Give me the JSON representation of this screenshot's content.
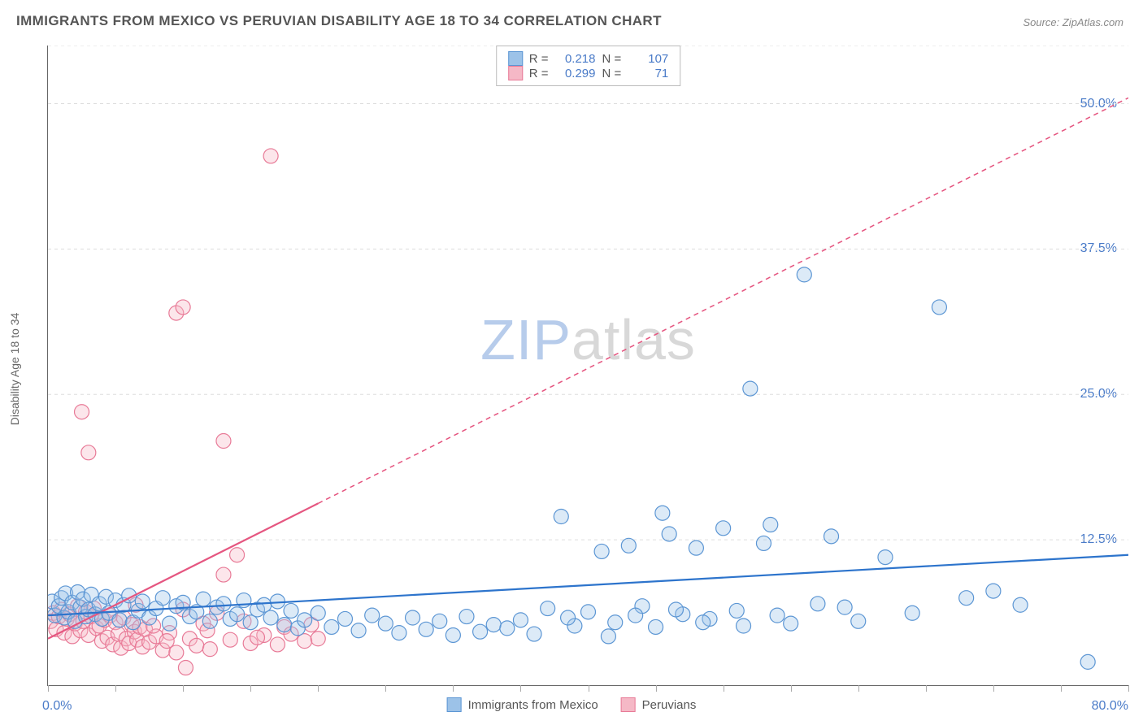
{
  "title": "IMMIGRANTS FROM MEXICO VS PERUVIAN DISABILITY AGE 18 TO 34 CORRELATION CHART",
  "source_label": "Source: ZipAtlas.com",
  "watermark_zip": "ZIP",
  "watermark_atlas": "atlas",
  "y_axis_title": "Disability Age 18 to 34",
  "chart": {
    "type": "scatter",
    "xlim": [
      0,
      80
    ],
    "ylim": [
      0,
      55
    ],
    "x_min_label": "0.0%",
    "x_max_label": "80.0%",
    "x_ticks": [
      0,
      5,
      10,
      15,
      20,
      25,
      30,
      35,
      40,
      45,
      50,
      55,
      60,
      65,
      70,
      75,
      80
    ],
    "y_gridlines": [
      12.5,
      25.0,
      37.5,
      50.0,
      55.0
    ],
    "y_tick_labels": [
      "12.5%",
      "25.0%",
      "37.5%",
      "50.0%"
    ],
    "background_color": "#ffffff",
    "grid_color": "#dddddd",
    "axis_color": "#666666",
    "marker_radius": 9,
    "marker_fill_opacity": 0.35,
    "marker_stroke_width": 1.2,
    "trend_line_width": 2.2,
    "trend_dash": "6,5"
  },
  "series": {
    "blue": {
      "label": "Immigrants from Mexico",
      "R": "0.218",
      "N": "107",
      "fill": "#9cc2e8",
      "stroke": "#5c96d4",
      "line_color": "#2d74cc",
      "trend": {
        "x1": 0,
        "y1": 6.0,
        "x2": 80,
        "y2": 11.2
      },
      "solid_xmax": 80,
      "points": [
        [
          0.3,
          7.2
        ],
        [
          0.5,
          6.0
        ],
        [
          0.8,
          6.8
        ],
        [
          1.0,
          7.5
        ],
        [
          1.2,
          5.8
        ],
        [
          1.3,
          7.9
        ],
        [
          1.5,
          6.3
        ],
        [
          1.8,
          7.1
        ],
        [
          2.0,
          5.5
        ],
        [
          2.2,
          8.0
        ],
        [
          2.4,
          6.7
        ],
        [
          2.6,
          7.4
        ],
        [
          2.8,
          5.9
        ],
        [
          3.0,
          6.5
        ],
        [
          3.2,
          7.8
        ],
        [
          3.5,
          6.1
        ],
        [
          3.8,
          7.0
        ],
        [
          4.0,
          5.7
        ],
        [
          4.3,
          7.6
        ],
        [
          4.5,
          6.2
        ],
        [
          5.0,
          7.3
        ],
        [
          5.3,
          5.6
        ],
        [
          5.6,
          6.9
        ],
        [
          6.0,
          7.7
        ],
        [
          6.3,
          5.4
        ],
        [
          6.7,
          6.4
        ],
        [
          7.0,
          7.2
        ],
        [
          7.5,
          5.8
        ],
        [
          8.0,
          6.6
        ],
        [
          8.5,
          7.5
        ],
        [
          9.0,
          5.3
        ],
        [
          9.5,
          6.8
        ],
        [
          10.0,
          7.1
        ],
        [
          10.5,
          5.9
        ],
        [
          11.0,
          6.3
        ],
        [
          11.5,
          7.4
        ],
        [
          12.0,
          5.5
        ],
        [
          12.5,
          6.7
        ],
        [
          13.0,
          7.0
        ],
        [
          13.5,
          5.7
        ],
        [
          14.0,
          6.1
        ],
        [
          14.5,
          7.3
        ],
        [
          15.0,
          5.4
        ],
        [
          15.5,
          6.5
        ],
        [
          16.0,
          6.9
        ],
        [
          16.5,
          5.8
        ],
        [
          17.0,
          7.2
        ],
        [
          17.5,
          5.2
        ],
        [
          18.0,
          6.4
        ],
        [
          18.5,
          4.9
        ],
        [
          19.0,
          5.6
        ],
        [
          20.0,
          6.2
        ],
        [
          21.0,
          5.0
        ],
        [
          22.0,
          5.7
        ],
        [
          23.0,
          4.7
        ],
        [
          24.0,
          6.0
        ],
        [
          25.0,
          5.3
        ],
        [
          26.0,
          4.5
        ],
        [
          27.0,
          5.8
        ],
        [
          28.0,
          4.8
        ],
        [
          29.0,
          5.5
        ],
        [
          30.0,
          4.3
        ],
        [
          31.0,
          5.9
        ],
        [
          32.0,
          4.6
        ],
        [
          33.0,
          5.2
        ],
        [
          34.0,
          4.9
        ],
        [
          35.0,
          5.6
        ],
        [
          36.0,
          4.4
        ],
        [
          37.0,
          6.6
        ],
        [
          38.0,
          14.5
        ],
        [
          39.0,
          5.1
        ],
        [
          40.0,
          6.3
        ],
        [
          41.0,
          11.5
        ],
        [
          42.0,
          5.4
        ],
        [
          43.0,
          12.0
        ],
        [
          44.0,
          6.8
        ],
        [
          45.0,
          5.0
        ],
        [
          46.0,
          13.0
        ],
        [
          47.0,
          6.1
        ],
        [
          48.0,
          11.8
        ],
        [
          49.0,
          5.7
        ],
        [
          50.0,
          13.5
        ],
        [
          51.0,
          6.4
        ],
        [
          52.0,
          25.5
        ],
        [
          53.0,
          12.2
        ],
        [
          54.0,
          6.0
        ],
        [
          55.0,
          5.3
        ],
        [
          56.0,
          35.3
        ],
        [
          57.0,
          7.0
        ],
        [
          58.0,
          12.8
        ],
        [
          59.0,
          6.7
        ],
        [
          60.0,
          5.5
        ],
        [
          62.0,
          11.0
        ],
        [
          64.0,
          6.2
        ],
        [
          66.0,
          32.5
        ],
        [
          68.0,
          7.5
        ],
        [
          70.0,
          8.1
        ],
        [
          72.0,
          6.9
        ],
        [
          77.0,
          2.0
        ],
        [
          45.5,
          14.8
        ],
        [
          38.5,
          5.8
        ],
        [
          41.5,
          4.2
        ],
        [
          46.5,
          6.5
        ],
        [
          51.5,
          5.1
        ],
        [
          53.5,
          13.8
        ],
        [
          43.5,
          6.0
        ],
        [
          48.5,
          5.4
        ]
      ]
    },
    "pink": {
      "label": "Peruvians",
      "R": "0.299",
      "N": "71",
      "fill": "#f5b8c6",
      "stroke": "#e87a97",
      "line_color": "#e55680",
      "trend": {
        "x1": 0,
        "y1": 4.0,
        "x2": 80,
        "y2": 50.5
      },
      "solid_xmax": 20,
      "points": [
        [
          0.2,
          5.5
        ],
        [
          0.4,
          6.2
        ],
        [
          0.6,
          4.8
        ],
        [
          0.8,
          5.9
        ],
        [
          1.0,
          6.5
        ],
        [
          1.2,
          4.5
        ],
        [
          1.4,
          5.7
        ],
        [
          1.6,
          6.1
        ],
        [
          1.8,
          4.2
        ],
        [
          2.0,
          5.3
        ],
        [
          2.2,
          6.8
        ],
        [
          2.4,
          4.7
        ],
        [
          2.6,
          5.5
        ],
        [
          2.8,
          6.3
        ],
        [
          3.0,
          4.3
        ],
        [
          3.2,
          5.9
        ],
        [
          3.4,
          6.6
        ],
        [
          3.6,
          4.9
        ],
        [
          3.8,
          5.1
        ],
        [
          4.0,
          3.8
        ],
        [
          4.2,
          5.6
        ],
        [
          4.4,
          4.1
        ],
        [
          4.6,
          6.0
        ],
        [
          4.8,
          3.5
        ],
        [
          5.0,
          5.4
        ],
        [
          5.2,
          4.4
        ],
        [
          5.4,
          3.2
        ],
        [
          5.6,
          5.8
        ],
        [
          5.8,
          4.0
        ],
        [
          6.0,
          3.6
        ],
        [
          6.2,
          5.2
        ],
        [
          6.4,
          4.6
        ],
        [
          6.6,
          3.9
        ],
        [
          6.8,
          5.0
        ],
        [
          7.0,
          3.3
        ],
        [
          7.2,
          4.8
        ],
        [
          7.5,
          3.7
        ],
        [
          8.0,
          4.2
        ],
        [
          8.5,
          3.0
        ],
        [
          9.0,
          4.5
        ],
        [
          9.5,
          2.8
        ],
        [
          10.0,
          6.5
        ],
        [
          10.5,
          4.0
        ],
        [
          11.0,
          3.4
        ],
        [
          11.5,
          5.3
        ],
        [
          12.0,
          3.1
        ],
        [
          13.0,
          9.5
        ],
        [
          14.0,
          11.2
        ],
        [
          15.0,
          3.6
        ],
        [
          16.0,
          4.3
        ],
        [
          2.5,
          23.5
        ],
        [
          3.0,
          20.0
        ],
        [
          9.5,
          32.0
        ],
        [
          10.0,
          32.5
        ],
        [
          13.0,
          21.0
        ],
        [
          16.5,
          45.5
        ],
        [
          6.5,
          6.9
        ],
        [
          7.8,
          5.1
        ],
        [
          8.8,
          3.8
        ],
        [
          11.8,
          4.7
        ],
        [
          12.5,
          6.2
        ],
        [
          13.5,
          3.9
        ],
        [
          14.5,
          5.5
        ],
        [
          15.5,
          4.1
        ],
        [
          17.0,
          3.5
        ],
        [
          17.5,
          5.0
        ],
        [
          18.0,
          4.4
        ],
        [
          19.0,
          3.8
        ],
        [
          19.5,
          5.2
        ],
        [
          20.0,
          4.0
        ],
        [
          10.2,
          1.5
        ]
      ]
    }
  },
  "legend_top": {
    "r_label": "R =",
    "n_label": "N ="
  }
}
